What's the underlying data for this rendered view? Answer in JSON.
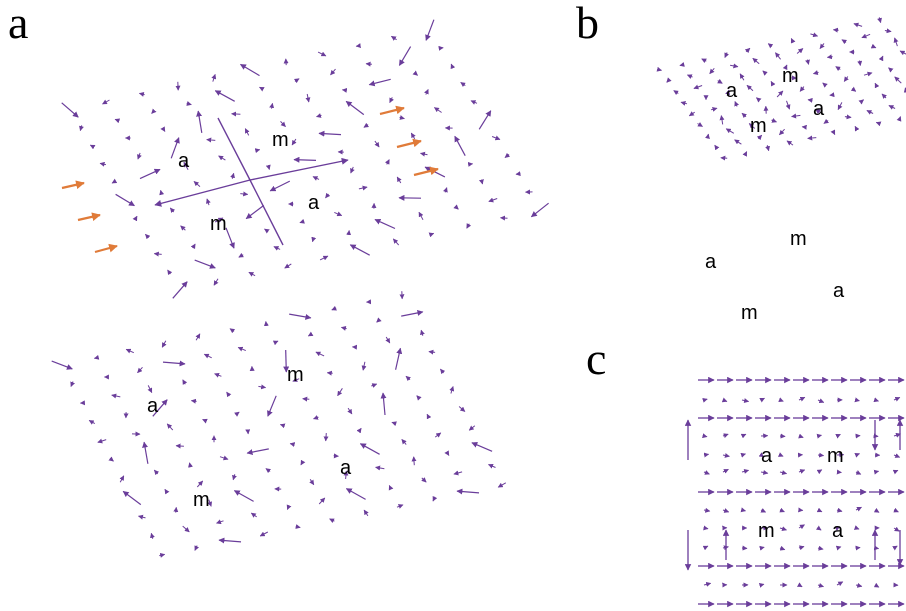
{
  "panels": [
    {
      "letter": "a",
      "subpanels": [
        {
          "labels": [
            "a",
            "m",
            "m",
            "a"
          ]
        },
        {
          "labels": [
            "m",
            "a",
            "a",
            "m"
          ]
        }
      ]
    },
    {
      "letter": "b",
      "subpanels": [
        {
          "labels": [
            "m",
            "a",
            "a",
            "m"
          ]
        },
        {
          "labels": [
            "m",
            "a",
            "a",
            "m"
          ]
        }
      ]
    },
    {
      "letter": "c",
      "subpanels": [
        {
          "labels": [
            "a",
            "m",
            "m",
            "a"
          ]
        }
      ]
    }
  ],
  "colors": {
    "field_arrow": "#6a3d9a",
    "current_arrow": "#e07b39",
    "text": "#000000"
  },
  "icons": [
    "vector-field-arrow-icon",
    "current-arrow-icon"
  ]
}
